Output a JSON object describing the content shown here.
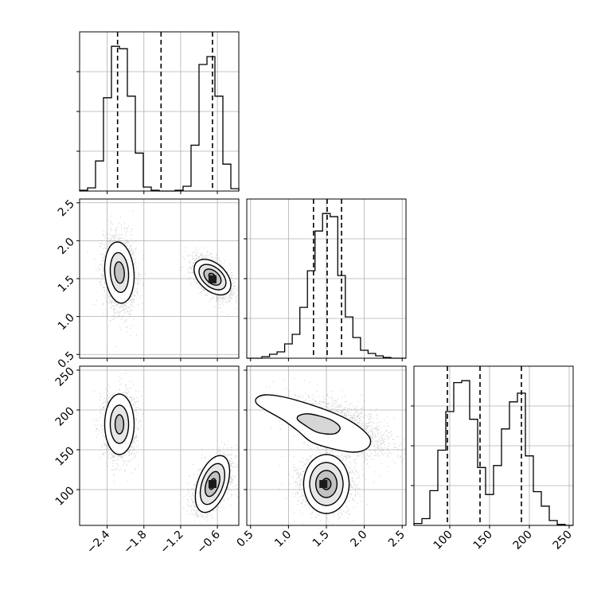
{
  "chart_data": {
    "type": "corner",
    "colors": {
      "line": "#000000",
      "scatter": "#7f7f7f",
      "grid": "#b0b0b0",
      "background": "#ffffff"
    },
    "grid": true,
    "variables": [
      {
        "range": [
          -2.85,
          -0.25
        ],
        "ticks": [
          -2.4,
          -1.8,
          -1.2,
          -0.6
        ],
        "tick_labels": [
          "−2.4",
          "−1.8",
          "−1.2",
          "−0.6"
        ]
      },
      {
        "range": [
          0.45,
          2.55
        ],
        "ticks": [
          0.5,
          1.0,
          1.5,
          2.0,
          2.5
        ],
        "tick_labels": [
          "0.5",
          "1.0",
          "1.5",
          "2.0",
          "2.5"
        ]
      },
      {
        "range": [
          55,
          255
        ],
        "ticks": [
          100,
          150,
          200,
          250
        ],
        "tick_labels": [
          "100",
          "150",
          "200",
          "250"
        ]
      }
    ],
    "diagonal": [
      {
        "variable": 0,
        "bin_edges": [
          -2.85,
          -2.72,
          -2.59,
          -2.46,
          -2.33,
          -2.2,
          -2.07,
          -1.94,
          -1.81,
          -1.68,
          -1.55,
          -1.42,
          -1.29,
          -1.16,
          -1.03,
          -0.9,
          -0.77,
          -0.64,
          -0.51,
          -0.38,
          -0.25
        ],
        "counts": [
          1,
          4,
          38,
          118,
          183,
          180,
          120,
          48,
          5,
          1,
          0,
          0,
          1,
          6,
          58,
          160,
          170,
          120,
          34,
          3
        ],
        "quantiles": [
          -2.23,
          -1.52,
          -0.68
        ]
      },
      {
        "variable": 1,
        "bin_edges": [
          0.45,
          0.55,
          0.65,
          0.75,
          0.85,
          0.95,
          1.05,
          1.15,
          1.25,
          1.35,
          1.45,
          1.55,
          1.65,
          1.75,
          1.85,
          1.95,
          2.05,
          2.15,
          2.25,
          2.35,
          2.45,
          2.55
        ],
        "counts": [
          0,
          0,
          2,
          5,
          8,
          18,
          30,
          64,
          110,
          160,
          182,
          178,
          104,
          52,
          26,
          10,
          6,
          3,
          1,
          0,
          0
        ],
        "quantiles": [
          1.33,
          1.51,
          1.7
        ]
      },
      {
        "variable": 2,
        "bin_edges": [
          55,
          65,
          75,
          85,
          95,
          105,
          115,
          125,
          135,
          145,
          155,
          165,
          175,
          185,
          195,
          205,
          215,
          225,
          235,
          245,
          255
        ],
        "counts": [
          2,
          7,
          36,
          78,
          118,
          148,
          150,
          110,
          60,
          32,
          62,
          100,
          128,
          137,
          72,
          35,
          20,
          5,
          1,
          0
        ],
        "quantiles": [
          97,
          138,
          190
        ]
      }
    ],
    "pairs": [
      {
        "x_var": 0,
        "y_var": 1,
        "clusters": [
          {
            "center": [
              -2.2,
              1.58
            ],
            "sx": 0.13,
            "sy": 0.26,
            "rho": -0.15,
            "n": 2000
          },
          {
            "center": [
              -0.68,
              1.52
            ],
            "sx": 0.15,
            "sy": 0.13,
            "rho": -0.55,
            "n": 2200
          }
        ],
        "contours": [
          {
            "center": [
              -2.2,
              1.58
            ],
            "levels": [
              [
                0.24,
                0.4
              ],
              [
                0.15,
                0.26
              ],
              [
                0.08,
                0.14
              ]
            ],
            "rho": -0.15
          },
          {
            "center": [
              -0.68,
              1.52
            ],
            "levels": [
              [
                0.3,
                0.21
              ],
              [
                0.22,
                0.15
              ],
              [
                0.14,
                0.095
              ],
              [
                0.06,
                0.045
              ]
            ],
            "rho": -0.55
          }
        ],
        "peak": [
          -0.68,
          1.49
        ]
      },
      {
        "x_var": 0,
        "y_var": 2,
        "clusters": [
          {
            "center": [
              -2.2,
              181
            ],
            "sx": 0.13,
            "sy": 20,
            "rho": 0.0,
            "n": 2000
          },
          {
            "center": [
              -0.68,
              107
            ],
            "sx": 0.15,
            "sy": 17,
            "rho": 0.55,
            "n": 2200
          }
        ],
        "contours": [
          {
            "center": [
              -2.2,
              182
            ],
            "levels": [
              [
                0.24,
                38
              ],
              [
                0.15,
                24
              ],
              [
                0.07,
                12
              ]
            ],
            "rho": 0.0
          },
          {
            "center": [
              -0.68,
              107
            ],
            "levels": [
              [
                0.28,
                32
              ],
              [
                0.2,
                23
              ],
              [
                0.12,
                14
              ],
              [
                0.05,
                6
              ]
            ],
            "rho": 0.55
          }
        ],
        "peak": [
          -0.68,
          107
        ]
      },
      {
        "x_var": 1,
        "y_var": 2,
        "clusters": [
          {
            "center": [
              1.7,
              178
            ],
            "sx": 0.32,
            "sy": 18,
            "rho": -0.55,
            "n": 2000
          },
          {
            "center": [
              1.5,
              107
            ],
            "sx": 0.17,
            "sy": 17,
            "rho": 0.0,
            "n": 2200
          }
        ],
        "contours": [
          {
            "center": [
              1.5,
              107
            ],
            "levels": [
              [
                0.3,
                37
              ],
              [
                0.22,
                27
              ],
              [
                0.14,
                17
              ],
              [
                0.06,
                7
              ]
            ],
            "rho": 0.0
          }
        ],
        "outer_contour": [
          [
            0.58,
            215
          ],
          [
            0.7,
            219
          ],
          [
            0.95,
            216
          ],
          [
            1.25,
            208
          ],
          [
            1.55,
            198
          ],
          [
            1.78,
            188
          ],
          [
            1.98,
            175
          ],
          [
            2.08,
            163
          ],
          [
            2.04,
            152
          ],
          [
            1.86,
            147
          ],
          [
            1.55,
            152
          ],
          [
            1.3,
            160
          ],
          [
            1.12,
            174
          ],
          [
            0.92,
            188
          ],
          [
            0.7,
            200
          ],
          [
            0.58,
            208
          ]
        ],
        "inner_contour": [
          [
            1.14,
            193
          ],
          [
            1.28,
            195
          ],
          [
            1.55,
            188
          ],
          [
            1.68,
            178
          ],
          [
            1.6,
            170
          ],
          [
            1.38,
            172
          ],
          [
            1.2,
            182
          ],
          [
            1.12,
            188
          ]
        ],
        "peak": [
          1.46,
          107
        ]
      }
    ]
  }
}
